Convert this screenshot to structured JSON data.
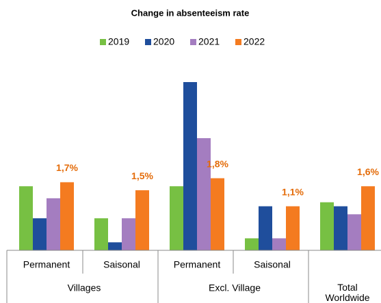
{
  "chart_data": {
    "type": "bar",
    "title": "Change in absenteeism rate",
    "categories": [
      "Permanent",
      "Saisonal",
      "Permanent",
      "Saisonal",
      null
    ],
    "groups": [
      {
        "label": "Villages",
        "span": 2
      },
      {
        "label": "Excl. Village",
        "span": 2
      },
      {
        "label": "Total Worldwide",
        "span": 1
      }
    ],
    "series": [
      {
        "name": "2019",
        "color": "#77c043",
        "values": [
          1.6,
          0.8,
          1.6,
          0.3,
          1.2
        ]
      },
      {
        "name": "2020",
        "color": "#1f4e9c",
        "values": [
          0.8,
          0.2,
          4.2,
          1.1,
          1.1
        ]
      },
      {
        "name": "2021",
        "color": "#a47dc0",
        "values": [
          1.3,
          0.8,
          2.8,
          0.3,
          0.9
        ]
      },
      {
        "name": "2022",
        "color": "#f47b20",
        "values": [
          1.7,
          1.5,
          1.8,
          1.1,
          1.6
        ],
        "value_labels": [
          "1,7%",
          "1,5%",
          "1,8%",
          "1,1%",
          "1,6%"
        ]
      }
    ],
    "ylim": [
      0,
      4.2
    ],
    "legend": "top"
  }
}
